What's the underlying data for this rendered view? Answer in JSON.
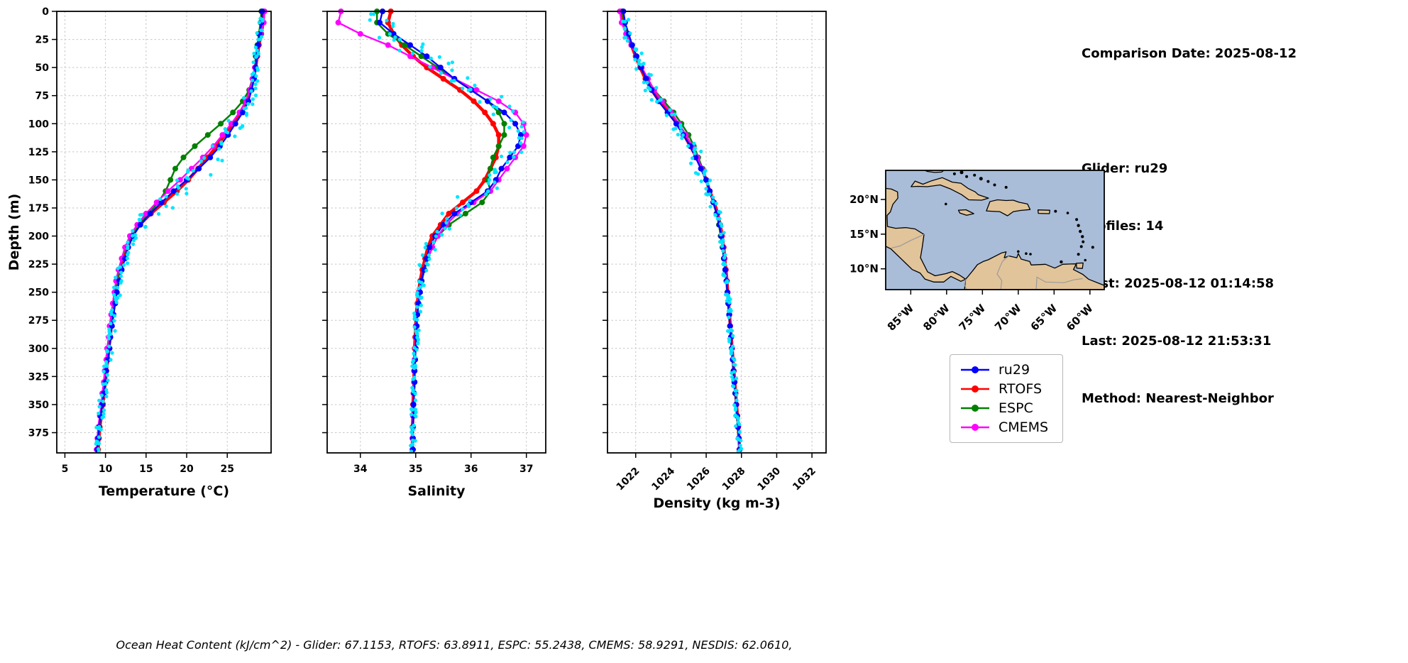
{
  "info": {
    "comparison_date": "Comparison Date: 2025-08-12",
    "glider": "Glider: ru29",
    "profiles": "Profiles: 14",
    "first": "First: 2025-08-12 01:14:58",
    "last": "Last: 2025-08-12 21:53:31",
    "method": "Method: Nearest-Neighbor"
  },
  "footer": "Ocean Heat Content (kJ/cm^2) - Glider: 67.1153,  RTOFS: 63.8911,  ESPC: 55.2438,  CMEMS: 58.9291,  NESDIS: 62.0610,",
  "legend": {
    "entries": [
      {
        "label": "ru29",
        "color": "#0000ff"
      },
      {
        "label": "RTOFS",
        "color": "#ff0000"
      },
      {
        "label": "ESPC",
        "color": "#008000"
      },
      {
        "label": "CMEMS",
        "color": "#ff00ff"
      }
    ]
  },
  "map": {
    "ocean_color": "#a9bdd9",
    "land_color": "#e2c49a",
    "lat_ticks": [
      {
        "label": "20°N",
        "value": 20
      },
      {
        "label": "15°N",
        "value": 15
      },
      {
        "label": "10°N",
        "value": 10
      }
    ],
    "lon_ticks": [
      {
        "label": "85°W",
        "value": -85
      },
      {
        "label": "80°W",
        "value": -80
      },
      {
        "label": "75°W",
        "value": -75
      },
      {
        "label": "70°W",
        "value": -70
      },
      {
        "label": "65°W",
        "value": -65
      },
      {
        "label": "60°W",
        "value": -60
      }
    ]
  },
  "depths": [
    0,
    10,
    20,
    30,
    40,
    50,
    60,
    70,
    80,
    90,
    100,
    110,
    120,
    130,
    140,
    150,
    160,
    170,
    180,
    190,
    200,
    210,
    220,
    230,
    240,
    250,
    260,
    270,
    280,
    290,
    300,
    310,
    320,
    330,
    340,
    350,
    360,
    370,
    380,
    390
  ],
  "chart_data": [
    {
      "type": "line",
      "xlabel": "Temperature (°C)",
      "ylabel": "Depth (m)",
      "xlim": [
        4.0,
        30.4
      ],
      "xticks": [
        5,
        10,
        15,
        20,
        25
      ],
      "ylim": [
        0,
        393
      ],
      "yticks": [
        0,
        25,
        50,
        75,
        100,
        125,
        150,
        175,
        200,
        225,
        250,
        275,
        300,
        325,
        350,
        375
      ],
      "series": [
        {
          "name": "ru29",
          "color": "#0000ff",
          "values": [
            29.3,
            29.2,
            29.0,
            28.8,
            28.6,
            28.5,
            28.3,
            28.0,
            27.6,
            26.9,
            26.0,
            25.1,
            24.1,
            22.9,
            21.5,
            20.0,
            18.4,
            16.9,
            15.5,
            14.3,
            13.4,
            12.8,
            12.4,
            12.0,
            11.7,
            11.4,
            11.2,
            11.0,
            10.8,
            10.6,
            10.5,
            10.3,
            10.1,
            10.0,
            9.8,
            9.6,
            9.4,
            9.2,
            9.1,
            9.0
          ]
        },
        {
          "name": "RTOFS",
          "color": "#ff0000",
          "values": [
            29.5,
            29.4,
            29.2,
            28.9,
            28.7,
            28.5,
            28.2,
            27.9,
            27.4,
            26.6,
            25.7,
            24.7,
            23.7,
            22.6,
            21.4,
            20.2,
            18.8,
            17.2,
            15.6,
            14.2,
            13.2,
            12.6,
            12.1,
            11.8,
            11.5,
            11.2,
            11.0,
            10.9,
            10.7,
            10.6,
            10.4,
            10.3,
            10.1,
            10.0,
            9.8,
            9.7,
            9.5,
            9.3,
            9.2,
            9.1
          ]
        },
        {
          "name": "ESPC",
          "color": "#008000",
          "values": [
            29.2,
            29.1,
            28.9,
            28.7,
            28.5,
            28.4,
            28.1,
            27.7,
            26.9,
            25.7,
            24.2,
            22.6,
            21.0,
            19.6,
            18.6,
            18.0,
            17.4,
            16.5,
            15.3,
            14.1,
            13.1,
            12.5,
            12.0,
            11.7,
            11.4,
            11.2,
            11.0,
            10.8,
            10.6,
            10.5,
            10.3,
            10.2,
            10.0,
            9.9,
            9.7,
            9.6,
            9.4,
            9.2,
            9.1,
            9.0
          ]
        },
        {
          "name": "CMEMS",
          "color": "#ff00ff",
          "values": [
            29.6,
            29.5,
            29.1,
            28.8,
            28.6,
            28.4,
            28.1,
            27.8,
            27.3,
            26.5,
            25.5,
            24.4,
            23.3,
            22.0,
            20.6,
            19.2,
            17.7,
            16.3,
            15.0,
            13.9,
            13.0,
            12.4,
            12.0,
            11.6,
            11.3,
            11.1,
            10.9,
            10.7,
            10.5,
            10.4,
            10.2,
            10.1,
            9.9,
            9.8,
            9.6,
            9.5,
            9.3,
            9.1,
            9.0,
            8.9
          ]
        }
      ],
      "scatter": {
        "name": "glider raw points",
        "color": "#00e5ff",
        "base_spread": 0.18,
        "grad_factor": 0.5,
        "surface_spread": 0.35
      }
    },
    {
      "type": "line",
      "xlabel": "Salinity",
      "ylabel": "",
      "xlim": [
        33.4,
        37.35
      ],
      "xticks": [
        34,
        35,
        36,
        37
      ],
      "ylim": [
        0,
        393
      ],
      "yticks": [
        0,
        25,
        50,
        75,
        100,
        125,
        150,
        175,
        200,
        225,
        250,
        275,
        300,
        325,
        350,
        375
      ],
      "series": [
        {
          "name": "ru29",
          "color": "#0000ff",
          "values": [
            34.4,
            34.35,
            34.6,
            34.9,
            35.2,
            35.45,
            35.7,
            36.0,
            36.3,
            36.6,
            36.8,
            36.9,
            36.85,
            36.7,
            36.55,
            36.45,
            36.3,
            36.0,
            35.7,
            35.5,
            35.35,
            35.25,
            35.2,
            35.15,
            35.1,
            35.08,
            35.05,
            35.03,
            35.02,
            35.01,
            35.0,
            34.99,
            34.98,
            34.98,
            34.97,
            34.96,
            34.96,
            34.95,
            34.95,
            34.95
          ]
        },
        {
          "name": "RTOFS",
          "color": "#ff0000",
          "values": [
            34.55,
            34.5,
            34.6,
            34.75,
            34.95,
            35.2,
            35.5,
            35.8,
            36.05,
            36.25,
            36.4,
            36.5,
            36.5,
            36.45,
            36.35,
            36.25,
            36.1,
            35.85,
            35.6,
            35.45,
            35.3,
            35.22,
            35.17,
            35.12,
            35.08,
            35.05,
            35.03,
            35.01,
            35.0,
            34.99,
            34.98,
            34.98,
            34.97,
            34.97,
            34.96,
            34.95,
            34.95,
            34.94,
            34.94,
            34.94
          ]
        },
        {
          "name": "ESPC",
          "color": "#008000",
          "values": [
            34.3,
            34.3,
            34.5,
            34.8,
            35.1,
            35.4,
            35.7,
            36.0,
            36.3,
            36.5,
            36.6,
            36.6,
            36.5,
            36.4,
            36.35,
            36.3,
            36.35,
            36.2,
            35.9,
            35.6,
            35.4,
            35.3,
            35.22,
            35.16,
            35.11,
            35.07,
            35.05,
            35.03,
            35.01,
            35.0,
            34.99,
            34.99,
            34.98,
            34.98,
            34.97,
            34.96,
            34.96,
            34.95,
            34.95,
            34.95
          ]
        },
        {
          "name": "CMEMS",
          "color": "#ff00ff",
          "values": [
            33.65,
            33.6,
            34.0,
            34.5,
            34.9,
            35.3,
            35.7,
            36.1,
            36.5,
            36.8,
            36.95,
            37.0,
            36.95,
            36.8,
            36.65,
            36.5,
            36.35,
            36.05,
            35.75,
            35.55,
            35.4,
            35.3,
            35.22,
            35.15,
            35.1,
            35.06,
            35.04,
            35.02,
            35.01,
            35.0,
            34.99,
            34.98,
            34.97,
            34.97,
            34.96,
            34.96,
            34.95,
            34.95,
            34.94,
            34.94
          ]
        }
      ],
      "scatter": {
        "name": "glider raw points",
        "color": "#00e5ff",
        "base_spread": 0.045,
        "grad_factor": 0.4,
        "surface_spread": 0.55
      }
    },
    {
      "type": "line",
      "xlabel": "Density (kg m-3)",
      "ylabel": "",
      "xlim": [
        1020.4,
        1032.8
      ],
      "xticks": [
        1022,
        1024,
        1026,
        1028,
        1030,
        1032
      ],
      "ylim": [
        0,
        393
      ],
      "yticks": [
        0,
        25,
        50,
        75,
        100,
        125,
        150,
        175,
        200,
        225,
        250,
        275,
        300,
        325,
        350,
        375
      ],
      "series": [
        {
          "name": "ru29",
          "color": "#0000ff",
          "values": [
            1021.3,
            1021.4,
            1021.6,
            1021.8,
            1022.05,
            1022.3,
            1022.6,
            1022.9,
            1023.3,
            1023.8,
            1024.3,
            1024.7,
            1025.1,
            1025.4,
            1025.7,
            1026.0,
            1026.2,
            1026.4,
            1026.6,
            1026.75,
            1026.85,
            1026.95,
            1027.0,
            1027.08,
            1027.15,
            1027.2,
            1027.25,
            1027.3,
            1027.35,
            1027.4,
            1027.45,
            1027.5,
            1027.55,
            1027.6,
            1027.65,
            1027.7,
            1027.75,
            1027.8,
            1027.85,
            1027.9
          ]
        },
        {
          "name": "RTOFS",
          "color": "#ff0000",
          "values": [
            1021.2,
            1021.3,
            1021.5,
            1021.75,
            1022.0,
            1022.25,
            1022.55,
            1022.9,
            1023.35,
            1023.85,
            1024.35,
            1024.75,
            1025.1,
            1025.45,
            1025.75,
            1026.0,
            1026.2,
            1026.45,
            1026.65,
            1026.8,
            1026.9,
            1027.0,
            1027.05,
            1027.12,
            1027.18,
            1027.22,
            1027.27,
            1027.32,
            1027.37,
            1027.42,
            1027.47,
            1027.52,
            1027.57,
            1027.62,
            1027.67,
            1027.72,
            1027.77,
            1027.82,
            1027.86,
            1027.9
          ]
        },
        {
          "name": "ESPC",
          "color": "#008000",
          "values": [
            1021.25,
            1021.35,
            1021.55,
            1021.8,
            1022.05,
            1022.3,
            1022.65,
            1023.05,
            1023.6,
            1024.15,
            1024.6,
            1025.0,
            1025.3,
            1025.55,
            1025.8,
            1026.0,
            1026.2,
            1026.4,
            1026.58,
            1026.72,
            1026.82,
            1026.92,
            1027.0,
            1027.08,
            1027.14,
            1027.2,
            1027.25,
            1027.3,
            1027.35,
            1027.4,
            1027.45,
            1027.5,
            1027.55,
            1027.6,
            1027.64,
            1027.69,
            1027.74,
            1027.79,
            1027.84,
            1027.88
          ]
        },
        {
          "name": "CMEMS",
          "color": "#ff00ff",
          "values": [
            1021.1,
            1021.2,
            1021.45,
            1021.75,
            1022.05,
            1022.35,
            1022.7,
            1023.05,
            1023.5,
            1024.0,
            1024.45,
            1024.85,
            1025.2,
            1025.5,
            1025.75,
            1026.0,
            1026.2,
            1026.42,
            1026.62,
            1026.77,
            1026.87,
            1026.97,
            1027.03,
            1027.1,
            1027.16,
            1027.21,
            1027.26,
            1027.31,
            1027.36,
            1027.41,
            1027.46,
            1027.51,
            1027.56,
            1027.6,
            1027.65,
            1027.7,
            1027.75,
            1027.8,
            1027.84,
            1027.88
          ]
        }
      ],
      "scatter": {
        "name": "glider raw points",
        "color": "#00e5ff",
        "base_spread": 0.09,
        "grad_factor": 0.4,
        "surface_spread": 0.45
      }
    }
  ]
}
